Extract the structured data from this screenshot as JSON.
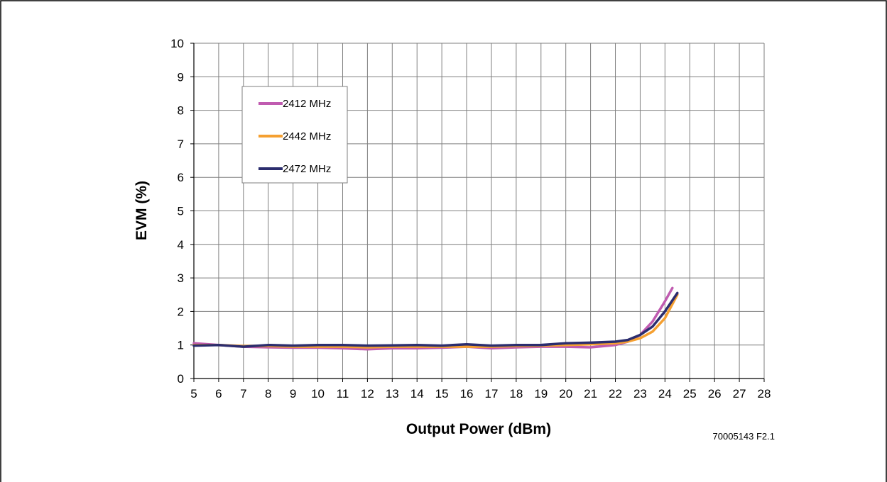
{
  "chart_data": {
    "type": "line",
    "title": "",
    "xlabel": "Output Power (dBm)",
    "ylabel": "EVM (%)",
    "xlim": [
      5,
      28
    ],
    "ylim": [
      0,
      10
    ],
    "xticks": [
      5,
      6,
      7,
      8,
      9,
      10,
      11,
      12,
      13,
      14,
      15,
      16,
      17,
      18,
      19,
      20,
      21,
      22,
      23,
      24,
      25,
      26,
      27,
      28
    ],
    "yticks": [
      0,
      1,
      2,
      3,
      4,
      5,
      6,
      7,
      8,
      9,
      10
    ],
    "grid": true,
    "legend_position": "top-left",
    "series": [
      {
        "name": "2412 MHz",
        "color": "#C05BB0",
        "x": [
          5,
          6,
          7,
          8,
          9,
          10,
          11,
          12,
          13,
          14,
          15,
          16,
          17,
          18,
          19,
          20,
          21,
          22,
          22.5,
          23,
          23.5,
          24,
          24.3
        ],
        "y": [
          1.05,
          1.0,
          0.95,
          0.93,
          0.92,
          0.92,
          0.9,
          0.87,
          0.9,
          0.9,
          0.92,
          0.95,
          0.9,
          0.93,
          0.95,
          0.95,
          0.93,
          1.0,
          1.1,
          1.3,
          1.7,
          2.3,
          2.7
        ]
      },
      {
        "name": "2442 MHz",
        "color": "#F5A031",
        "x": [
          5,
          6,
          7,
          8,
          9,
          10,
          11,
          12,
          13,
          14,
          15,
          16,
          17,
          18,
          19,
          20,
          21,
          22,
          22.5,
          23,
          23.5,
          24,
          24.5
        ],
        "y": [
          1.0,
          1.0,
          0.97,
          0.97,
          0.95,
          0.95,
          0.95,
          0.93,
          0.95,
          0.95,
          0.95,
          0.95,
          0.95,
          0.97,
          0.98,
          1.0,
          1.02,
          1.05,
          1.1,
          1.2,
          1.4,
          1.8,
          2.5
        ]
      },
      {
        "name": "2472 MHz",
        "color": "#2B2D6E",
        "x": [
          5,
          6,
          7,
          8,
          9,
          10,
          11,
          12,
          13,
          14,
          15,
          16,
          17,
          18,
          19,
          20,
          21,
          22,
          22.5,
          23,
          23.5,
          24,
          24.5
        ],
        "y": [
          0.98,
          1.0,
          0.95,
          1.0,
          0.98,
          1.0,
          1.0,
          0.98,
          0.99,
          1.0,
          0.98,
          1.02,
          0.98,
          1.0,
          1.0,
          1.05,
          1.07,
          1.1,
          1.15,
          1.3,
          1.55,
          2.0,
          2.55
        ]
      }
    ],
    "annotation": "70005143 F2.1"
  }
}
